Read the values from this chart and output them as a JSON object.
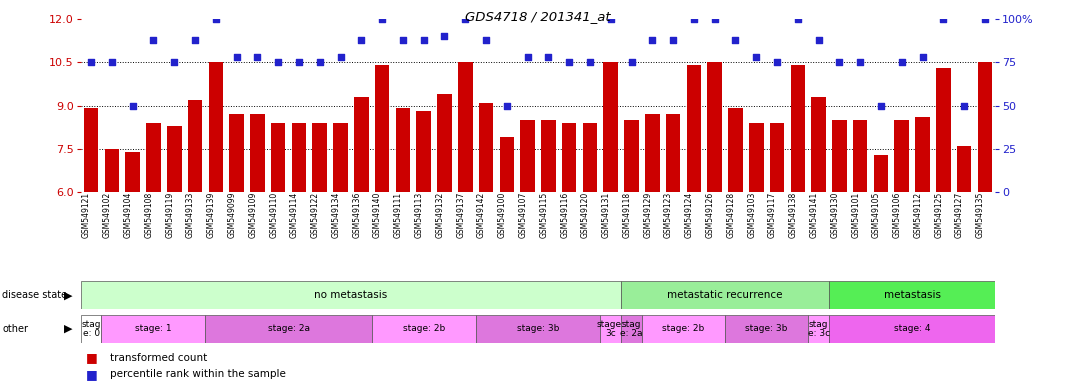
{
  "title": "GDS4718 / 201341_at",
  "samples": [
    "GSM549121",
    "GSM549102",
    "GSM549104",
    "GSM549108",
    "GSM549119",
    "GSM549133",
    "GSM549139",
    "GSM549099",
    "GSM549109",
    "GSM549110",
    "GSM549114",
    "GSM549122",
    "GSM549134",
    "GSM549136",
    "GSM549140",
    "GSM549111",
    "GSM549113",
    "GSM549132",
    "GSM549137",
    "GSM549142",
    "GSM549100",
    "GSM549107",
    "GSM549115",
    "GSM549116",
    "GSM549120",
    "GSM549131",
    "GSM549118",
    "GSM549129",
    "GSM549123",
    "GSM549124",
    "GSM549126",
    "GSM549128",
    "GSM549103",
    "GSM549117",
    "GSM549138",
    "GSM549141",
    "GSM549130",
    "GSM549101",
    "GSM549105",
    "GSM549106",
    "GSM549112",
    "GSM549125",
    "GSM549127",
    "GSM549135"
  ],
  "bar_values": [
    8.9,
    7.5,
    7.4,
    8.4,
    8.3,
    9.2,
    10.5,
    8.7,
    8.7,
    8.4,
    8.4,
    8.4,
    8.4,
    9.3,
    10.4,
    8.9,
    8.8,
    9.4,
    10.5,
    9.1,
    7.9,
    8.5,
    8.5,
    8.4,
    8.4,
    10.5,
    8.5,
    8.7,
    8.7,
    10.4,
    10.5,
    8.9,
    8.4,
    8.4,
    10.4,
    9.3,
    8.5,
    8.5,
    7.3,
    8.5,
    8.6,
    10.3,
    7.6,
    10.5
  ],
  "percentile_values": [
    75,
    75,
    50,
    88,
    75,
    88,
    100,
    78,
    78,
    75,
    75,
    75,
    78,
    88,
    100,
    88,
    88,
    90,
    100,
    88,
    50,
    78,
    78,
    75,
    75,
    100,
    75,
    88,
    88,
    100,
    100,
    88,
    78,
    75,
    100,
    88,
    75,
    75,
    50,
    75,
    78,
    100,
    50,
    100
  ],
  "ylim_left": [
    6,
    12
  ],
  "ylim_right": [
    0,
    100
  ],
  "yticks_left": [
    6,
    7.5,
    9,
    10.5,
    12
  ],
  "yticks_right": [
    0,
    25,
    50,
    75,
    100
  ],
  "hlines": [
    7.5,
    9,
    10.5
  ],
  "bar_color": "#cc0000",
  "scatter_color": "#2222cc",
  "bar_width": 0.7,
  "disease_state_bands": [
    {
      "label": "no metastasis",
      "start": 0,
      "end": 26,
      "color": "#ccffcc"
    },
    {
      "label": "metastatic recurrence",
      "start": 26,
      "end": 36,
      "color": "#99ee99"
    },
    {
      "label": "metastasis",
      "start": 36,
      "end": 44,
      "color": "#55ee55"
    }
  ],
  "other_bands": [
    {
      "label": "stag\ne: 0",
      "start": 0,
      "end": 1,
      "color": "#ffffff"
    },
    {
      "label": "stage: 1",
      "start": 1,
      "end": 6,
      "color": "#ff99ff"
    },
    {
      "label": "stage: 2a",
      "start": 6,
      "end": 14,
      "color": "#dd77dd"
    },
    {
      "label": "stage: 2b",
      "start": 14,
      "end": 19,
      "color": "#ff99ff"
    },
    {
      "label": "stage: 3b",
      "start": 19,
      "end": 25,
      "color": "#dd77dd"
    },
    {
      "label": "stage:\n3c",
      "start": 25,
      "end": 26,
      "color": "#ff99ff"
    },
    {
      "label": "stag\ne: 2a",
      "start": 26,
      "end": 27,
      "color": "#dd77dd"
    },
    {
      "label": "stage: 2b",
      "start": 27,
      "end": 31,
      "color": "#ff99ff"
    },
    {
      "label": "stage: 3b",
      "start": 31,
      "end": 35,
      "color": "#dd77dd"
    },
    {
      "label": "stag\ne: 3c",
      "start": 35,
      "end": 36,
      "color": "#ff99ff"
    },
    {
      "label": "stage: 4",
      "start": 36,
      "end": 44,
      "color": "#ee66ee"
    }
  ],
  "legend_items": [
    {
      "label": "transformed count",
      "color": "#cc0000"
    },
    {
      "label": "percentile rank within the sample",
      "color": "#2222cc"
    }
  ],
  "fig_width": 10.76,
  "fig_height": 3.84
}
